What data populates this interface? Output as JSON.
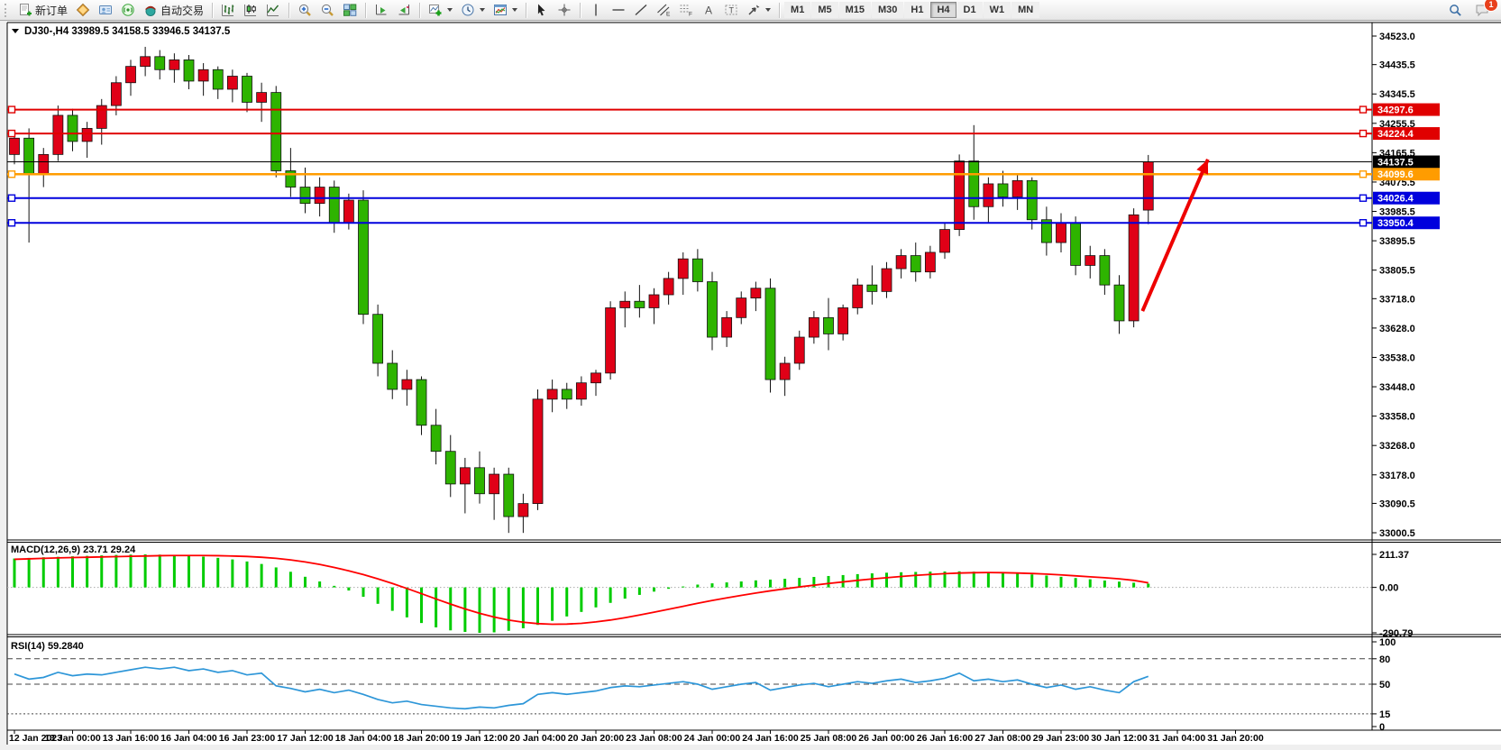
{
  "toolbar": {
    "new_order": "新订单",
    "auto_trading": "自动交易",
    "timeframes": [
      "M1",
      "M5",
      "M15",
      "M30",
      "H1",
      "H4",
      "D1",
      "W1",
      "MN"
    ],
    "active_timeframe": "H4",
    "notification_badge": "1"
  },
  "chart_data": [
    {
      "type": "candlestick",
      "symbol": "DJ30-",
      "timeframe": "H4",
      "title": "DJ30-,H4  33989.5 34158.5 33946.5 34137.5",
      "ohlc_display": {
        "open": "33989.5",
        "high": "34158.5",
        "low": "33946.5",
        "close": "34137.5"
      },
      "ylim": [
        33000.5,
        34523.0
      ],
      "y_ticks": [
        "34523.0",
        "34435.5",
        "34345.5",
        "34255.5",
        "34165.5",
        "34075.5",
        "33985.5",
        "33895.5",
        "33805.5",
        "33718.0",
        "33628.0",
        "33538.0",
        "33448.0",
        "33358.0",
        "33268.0",
        "33178.0",
        "33090.5",
        "33000.5"
      ],
      "x_labels": [
        "12 Jan 2023",
        "13 Jan 00:00",
        "13 Jan 16:00",
        "16 Jan 04:00",
        "16 Jan 23:00",
        "17 Jan 12:00",
        "18 Jan 04:00",
        "18 Jan 20:00",
        "19 Jan 12:00",
        "20 Jan 04:00",
        "20 Jan 20:00",
        "23 Jan 08:00",
        "24 Jan 00:00",
        "24 Jan 16:00",
        "25 Jan 08:00",
        "26 Jan 00:00",
        "26 Jan 16:00",
        "27 Jan 08:00",
        "29 Jan 23:00",
        "30 Jan 12:00",
        "31 Jan 04:00",
        "31 Jan 20:00"
      ],
      "x_label_start_bar": 0,
      "x_label_step_bars": 4,
      "colors": {
        "bull": "#e00017",
        "bear": "#2eb400",
        "wick": "#111111"
      },
      "candles": [
        [
          34160,
          34230,
          34130,
          34210
        ],
        [
          34210,
          34240,
          33890,
          34100
        ],
        [
          34100,
          34180,
          34060,
          34160
        ],
        [
          34160,
          34310,
          34140,
          34280
        ],
        [
          34280,
          34300,
          34170,
          34200
        ],
        [
          34200,
          34260,
          34150,
          34240
        ],
        [
          34240,
          34330,
          34190,
          34310
        ],
        [
          34310,
          34400,
          34280,
          34380
        ],
        [
          34380,
          34450,
          34340,
          34430
        ],
        [
          34430,
          34490,
          34400,
          34460
        ],
        [
          34460,
          34480,
          34390,
          34420
        ],
        [
          34420,
          34470,
          34380,
          34450
        ],
        [
          34450,
          34465,
          34360,
          34385
        ],
        [
          34385,
          34440,
          34340,
          34420
        ],
        [
          34420,
          34430,
          34330,
          34360
        ],
        [
          34360,
          34420,
          34320,
          34400
        ],
        [
          34400,
          34410,
          34290,
          34320
        ],
        [
          34320,
          34380,
          34260,
          34350
        ],
        [
          34350,
          34370,
          34090,
          34110
        ],
        [
          34110,
          34180,
          34030,
          34060
        ],
        [
          34060,
          34120,
          33980,
          34010
        ],
        [
          34010,
          34090,
          33970,
          34060
        ],
        [
          34060,
          34080,
          33920,
          33950
        ],
        [
          33950,
          34040,
          33930,
          34020
        ],
        [
          34020,
          34050,
          33640,
          33670
        ],
        [
          33670,
          33700,
          33480,
          33520
        ],
        [
          33520,
          33560,
          33410,
          33440
        ],
        [
          33440,
          33500,
          33390,
          33470
        ],
        [
          33470,
          33480,
          33300,
          33330
        ],
        [
          33330,
          33380,
          33210,
          33250
        ],
        [
          33250,
          33300,
          33110,
          33150
        ],
        [
          33150,
          33230,
          33060,
          33200
        ],
        [
          33200,
          33250,
          33090,
          33120
        ],
        [
          33120,
          33200,
          33040,
          33180
        ],
        [
          33180,
          33200,
          33000,
          33050
        ],
        [
          33050,
          33120,
          33000,
          33090
        ],
        [
          33090,
          33440,
          33070,
          33410
        ],
        [
          33410,
          33470,
          33370,
          33440
        ],
        [
          33440,
          33460,
          33380,
          33410
        ],
        [
          33410,
          33480,
          33390,
          33460
        ],
        [
          33460,
          33500,
          33420,
          33490
        ],
        [
          33490,
          33710,
          33470,
          33690
        ],
        [
          33690,
          33740,
          33630,
          33710
        ],
        [
          33710,
          33760,
          33660,
          33690
        ],
        [
          33690,
          33750,
          33640,
          33730
        ],
        [
          33730,
          33800,
          33700,
          33780
        ],
        [
          33780,
          33860,
          33730,
          33840
        ],
        [
          33840,
          33870,
          33740,
          33770
        ],
        [
          33770,
          33800,
          33560,
          33600
        ],
        [
          33600,
          33680,
          33570,
          33660
        ],
        [
          33660,
          33740,
          33640,
          33720
        ],
        [
          33720,
          33770,
          33680,
          33750
        ],
        [
          33750,
          33780,
          33430,
          33470
        ],
        [
          33470,
          33540,
          33420,
          33520
        ],
        [
          33520,
          33620,
          33500,
          33600
        ],
        [
          33600,
          33680,
          33580,
          33660
        ],
        [
          33660,
          33720,
          33560,
          33610
        ],
        [
          33610,
          33700,
          33590,
          33690
        ],
        [
          33690,
          33780,
          33670,
          33760
        ],
        [
          33760,
          33820,
          33700,
          33740
        ],
        [
          33740,
          33830,
          33720,
          33810
        ],
        [
          33810,
          33870,
          33780,
          33850
        ],
        [
          33850,
          33890,
          33770,
          33800
        ],
        [
          33800,
          33880,
          33780,
          33860
        ],
        [
          33860,
          33950,
          33840,
          33930
        ],
        [
          33930,
          34160,
          33910,
          34140
        ],
        [
          34140,
          34250,
          33960,
          34000
        ],
        [
          34000,
          34090,
          33950,
          34070
        ],
        [
          34070,
          34110,
          34000,
          34030
        ],
        [
          34030,
          34100,
          33990,
          34080
        ],
        [
          34080,
          34090,
          33930,
          33960
        ],
        [
          33960,
          34000,
          33850,
          33890
        ],
        [
          33890,
          33980,
          33860,
          33950
        ],
        [
          33950,
          33970,
          33790,
          33820
        ],
        [
          33820,
          33880,
          33780,
          33850
        ],
        [
          33850,
          33870,
          33730,
          33760
        ],
        [
          33760,
          33790,
          33610,
          33650
        ],
        [
          33650,
          33995,
          33630,
          33975
        ],
        [
          33989.5,
          34158.5,
          33946.5,
          34137.5
        ]
      ],
      "hlines": [
        {
          "price": 34297.6,
          "label": "34297.6",
          "color": "#e00000",
          "width": 2
        },
        {
          "price": 34224.4,
          "label": "34224.4",
          "color": "#e00000",
          "width": 2
        },
        {
          "price": 34137.5,
          "label": "34137.5",
          "color": "#000000",
          "width": 1,
          "role": "current-price"
        },
        {
          "price": 34099.6,
          "label": "34099.6",
          "color": "#ff9c00",
          "width": 2.5
        },
        {
          "price": 34026.4,
          "label": "34026.4",
          "color": "#0000dd",
          "width": 2
        },
        {
          "price": 33950.4,
          "label": "33950.4",
          "color": "#0000dd",
          "width": 2
        }
      ],
      "arrow_annotation": {
        "from_bar": 77.6,
        "from_price": 33680,
        "to_bar": 82.1,
        "to_price": 34145,
        "color": "#ee0000"
      }
    },
    {
      "type": "macd",
      "label": "MACD(12,26,9)",
      "value_main": "23.71",
      "value_signal": "29.24",
      "ylim": [
        -290.79,
        211.37
      ],
      "y_ticks": [
        "211.37",
        "0.00",
        "-290.79"
      ],
      "colors": {
        "histogram": "#00cc00",
        "signal": "#ff0000"
      },
      "histogram": [
        185,
        189,
        193,
        196,
        199,
        202,
        205,
        208,
        210,
        211.37,
        210,
        207,
        203,
        197,
        189,
        179,
        166,
        150,
        128,
        100,
        68,
        38,
        10,
        -20,
        -60,
        -105,
        -150,
        -192,
        -228,
        -256,
        -275,
        -285,
        -290.79,
        -288,
        -278,
        -262,
        -240,
        -214,
        -186,
        -157,
        -128,
        -99,
        -72,
        -48,
        -27,
        -9,
        6,
        18,
        26,
        32,
        38,
        45,
        50,
        55,
        61,
        67,
        73,
        79,
        85,
        90,
        94,
        97,
        99,
        101,
        102,
        103,
        101,
        98,
        94,
        89,
        83,
        76,
        68,
        60,
        52,
        44,
        37,
        30,
        23.71
      ],
      "signal": [
        180,
        183,
        186,
        189,
        191,
        193,
        195,
        197,
        199,
        201,
        203,
        204,
        204,
        204,
        203,
        201,
        198,
        193,
        186,
        176,
        163,
        147,
        128,
        106,
        82,
        55,
        25,
        -7,
        -40,
        -74,
        -107,
        -138,
        -166,
        -190,
        -209,
        -223,
        -232,
        -236,
        -235,
        -230,
        -221,
        -209,
        -194,
        -177,
        -159,
        -140,
        -121,
        -102,
        -84,
        -67,
        -51,
        -36,
        -22,
        -9,
        3,
        14,
        25,
        35,
        45,
        54,
        62,
        70,
        77,
        83,
        88,
        92,
        94,
        95,
        94,
        92,
        89,
        85,
        80,
        74,
        68,
        62,
        55,
        45,
        29.24
      ]
    },
    {
      "type": "line",
      "label": "RSI(14)",
      "value": "59.2840",
      "ylim": [
        0,
        100
      ],
      "y_ticks": [
        "100",
        "80",
        "50",
        "15",
        "0"
      ],
      "levels": [
        80,
        50,
        15
      ],
      "color": "#2d96d8",
      "values": [
        62,
        56,
        58,
        64,
        60,
        62,
        61,
        64,
        67,
        70,
        68,
        70,
        66,
        68,
        64,
        66,
        61,
        63,
        48,
        45,
        41,
        44,
        40,
        43,
        38,
        32,
        28,
        30,
        26,
        24,
        22,
        21,
        23,
        22,
        25,
        27,
        38,
        40,
        38,
        40,
        42,
        46,
        48,
        47,
        49,
        51,
        53,
        50,
        44,
        47,
        50,
        52,
        43,
        46,
        49,
        51,
        47,
        50,
        53,
        51,
        54,
        56,
        52,
        54,
        57,
        63,
        54,
        56,
        53,
        55,
        50,
        46,
        49,
        44,
        47,
        43,
        40,
        53,
        59.28
      ]
    }
  ]
}
